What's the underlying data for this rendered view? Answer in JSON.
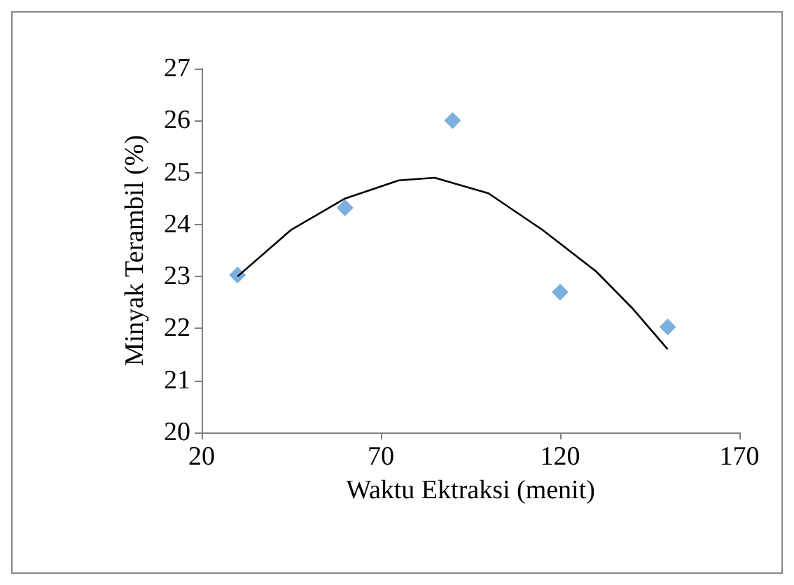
{
  "chart_data": {
    "type": "scatter",
    "xlabel": "Waktu Ektraksi (menit)",
    "ylabel": "Minyak Terambil (%)",
    "series": [
      {
        "color": "#5b9bd5",
        "marker": "diamond",
        "x": [
          30,
          60,
          90,
          120,
          150
        ],
        "values": [
          23.03,
          24.32,
          26.0,
          22.7,
          22.03
        ]
      },
      {
        "type": "line",
        "color": "#000000",
        "marker": "none",
        "line_style": "solid",
        "x": [
          30,
          45,
          60,
          75,
          85,
          100,
          115,
          130,
          140,
          150
        ],
        "values": [
          23.0,
          23.9,
          24.5,
          24.85,
          24.9,
          24.6,
          23.9,
          23.1,
          22.4,
          21.6
        ]
      }
    ],
    "xlim": [
      20,
      170
    ],
    "xticks": [
      20,
      70,
      120,
      170
    ],
    "ylim": [
      20,
      27
    ],
    "yticks": [
      20,
      21,
      22,
      23,
      24,
      25,
      26,
      27
    ],
    "grid": false
  }
}
